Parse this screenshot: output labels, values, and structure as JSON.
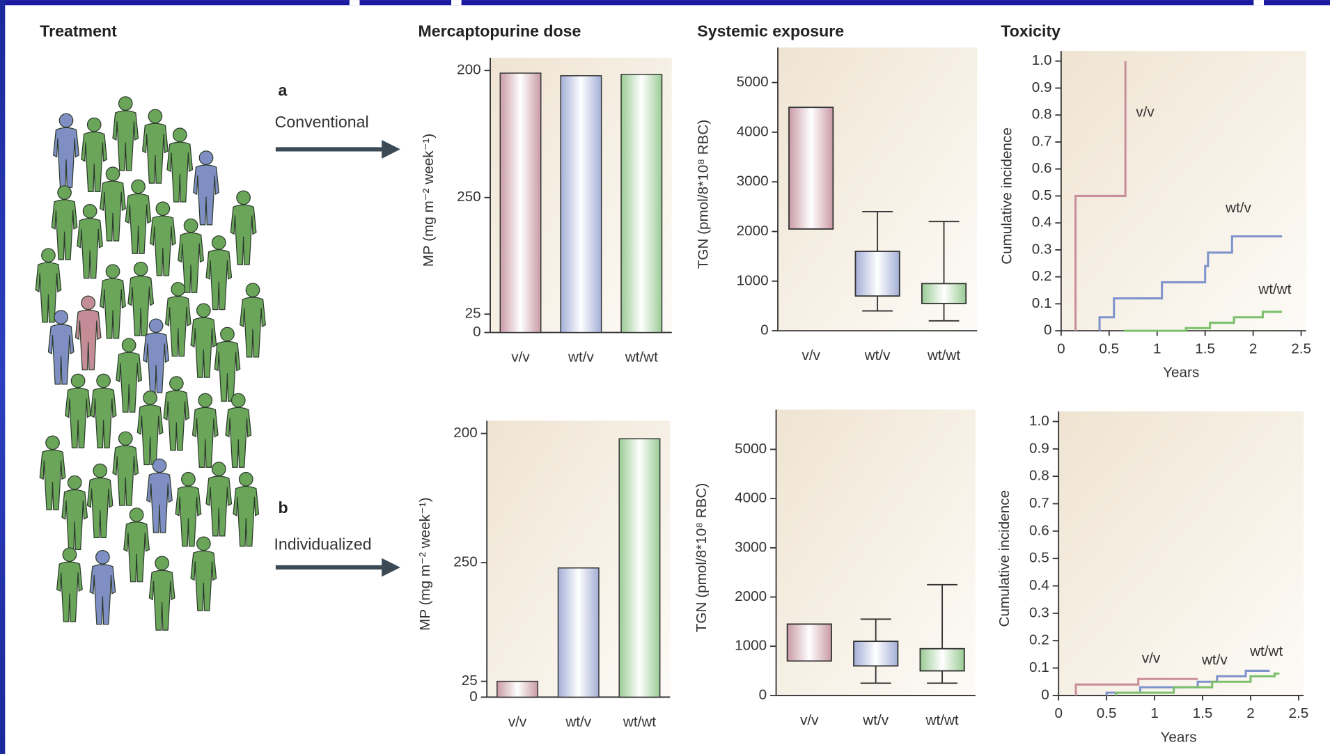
{
  "columns": [
    "Treatment",
    "Mercaptopurine dose",
    "Systemic exposure",
    "Toxicity"
  ],
  "panels": [
    {
      "letter": "a",
      "label": "Conventional"
    },
    {
      "letter": "b",
      "label": "Individualized"
    }
  ],
  "chart_data": [
    {
      "type": "bar",
      "ylabel": "MP (mg m⁻² week⁻¹)",
      "categories": [
        "v/v",
        "wt/v",
        "wt/wt"
      ],
      "values": [
        198,
        196,
        197
      ],
      "colors": [
        "#c99aa6",
        "#a3aed6",
        "#9acb94"
      ],
      "ylim": [
        0,
        202
      ],
      "yticks": [
        0,
        {
          "value": 14,
          "label": "25"
        },
        {
          "value": 103,
          "label": "250"
        },
        200
      ]
    },
    {
      "type": "box",
      "ylabel": "TGN (pmol/8*10⁸ RBC)",
      "categories": [
        "v/v",
        "wt/v",
        "wt/wt"
      ],
      "q1": [
        2050,
        700,
        550
      ],
      "q3": [
        4500,
        1600,
        950
      ],
      "low": [
        null,
        400,
        200
      ],
      "high": [
        null,
        2400,
        2200
      ],
      "colors": [
        "#c99aa6",
        "#a3aed6",
        "#9acb94"
      ],
      "ylim": [
        0,
        5500
      ],
      "yticks": [
        0,
        1000,
        2000,
        3000,
        4000,
        5000
      ]
    },
    {
      "type": "line",
      "ylabel": "Cumulative incidence",
      "xlabel": "Years",
      "xlim": [
        0,
        2.5
      ],
      "ylim": [
        0,
        1
      ],
      "xticks": [
        0,
        0.5,
        1,
        1.5,
        2,
        2.5
      ],
      "yticks": [
        0,
        0.1,
        0.2,
        0.3,
        0.4,
        0.5,
        0.6,
        0.7,
        0.8,
        0.9,
        {
          "value": 1,
          "label": "1.0"
        }
      ],
      "series": [
        {
          "name": "v/v",
          "color": "#c98e9c",
          "x": [
            0.15,
            0.15,
            0.67,
            0.67
          ],
          "values": [
            0,
            0.5,
            0.5,
            1
          ]
        },
        {
          "name": "wt/v",
          "color": "#7f93cc",
          "x": [
            0.4,
            0.4,
            0.55,
            0.55,
            1.05,
            1.05,
            1.5,
            1.5,
            1.53,
            1.53,
            1.78,
            1.78,
            2.3
          ],
          "values": [
            0,
            0.05,
            0.05,
            0.12,
            0.12,
            0.18,
            0.18,
            0.24,
            0.24,
            0.29,
            0.29,
            0.35,
            0.35
          ]
        },
        {
          "name": "wt/wt",
          "color": "#7cbf6c",
          "x": [
            0.65,
            1.3,
            1.3,
            1.55,
            1.55,
            1.8,
            1.8,
            2.1,
            2.1,
            2.3
          ],
          "values": [
            0,
            0,
            0.01,
            0.01,
            0.03,
            0.03,
            0.05,
            0.05,
            0.07,
            0.07
          ]
        }
      ]
    },
    {
      "type": "bar",
      "ylabel": "MP (mg m⁻² week⁻¹)",
      "categories": [
        "v/v",
        "wt/v",
        "wt/wt"
      ],
      "values": [
        12,
        98,
        196
      ],
      "colors": [
        "#c99aa6",
        "#a3aed6",
        "#9acb94"
      ],
      "ylim": [
        0,
        202
      ],
      "yticks": [
        0,
        {
          "value": 12,
          "label": "25"
        },
        {
          "value": 102,
          "label": "250"
        },
        200
      ]
    },
    {
      "type": "box",
      "ylabel": "TGN (pmol/8*10⁸ RBC)",
      "categories": [
        "v/v",
        "wt/v",
        "wt/wt"
      ],
      "q1": [
        700,
        600,
        500
      ],
      "q3": [
        1450,
        1100,
        950
      ],
      "low": [
        null,
        250,
        250
      ],
      "high": [
        null,
        1550,
        2250
      ],
      "colors": [
        "#c99aa6",
        "#a3aed6",
        "#9acb94"
      ],
      "ylim": [
        0,
        5600
      ],
      "yticks": [
        0,
        1000,
        2000,
        3000,
        4000,
        5000
      ]
    },
    {
      "type": "line",
      "ylabel": "Cumulative incidence",
      "xlabel": "Years",
      "xlim": [
        0,
        2.5
      ],
      "ylim": [
        0,
        1
      ],
      "xticks": [
        0,
        0.5,
        1,
        1.5,
        2,
        2.5
      ],
      "yticks": [
        0,
        0.1,
        0.2,
        0.3,
        0.4,
        0.5,
        0.6,
        0.7,
        0.8,
        0.9,
        {
          "value": 1,
          "label": "1.0"
        }
      ],
      "series": [
        {
          "name": "v/v",
          "color": "#c98e9c",
          "x": [
            0.18,
            0.18,
            0.83,
            0.83,
            1.45
          ],
          "values": [
            0,
            0.04,
            0.04,
            0.06,
            0.06
          ]
        },
        {
          "name": "wt/v",
          "color": "#7f93cc",
          "x": [
            0.5,
            0.5,
            0.85,
            0.85,
            1.45,
            1.45,
            1.65,
            1.65,
            1.95,
            1.95,
            2.2
          ],
          "values": [
            0,
            0.01,
            0.01,
            0.03,
            0.03,
            0.05,
            0.05,
            0.07,
            0.07,
            0.09,
            0.09
          ]
        },
        {
          "name": "wt/wt",
          "color": "#7cbf6c",
          "x": [
            0.6,
            0.6,
            1.2,
            1.2,
            1.6,
            1.6,
            2.0,
            2.0,
            2.25,
            2.25,
            2.3
          ],
          "values": [
            0,
            0.01,
            0.01,
            0.03,
            0.03,
            0.05,
            0.05,
            0.07,
            0.07,
            0.08,
            0.08
          ]
        }
      ]
    }
  ]
}
